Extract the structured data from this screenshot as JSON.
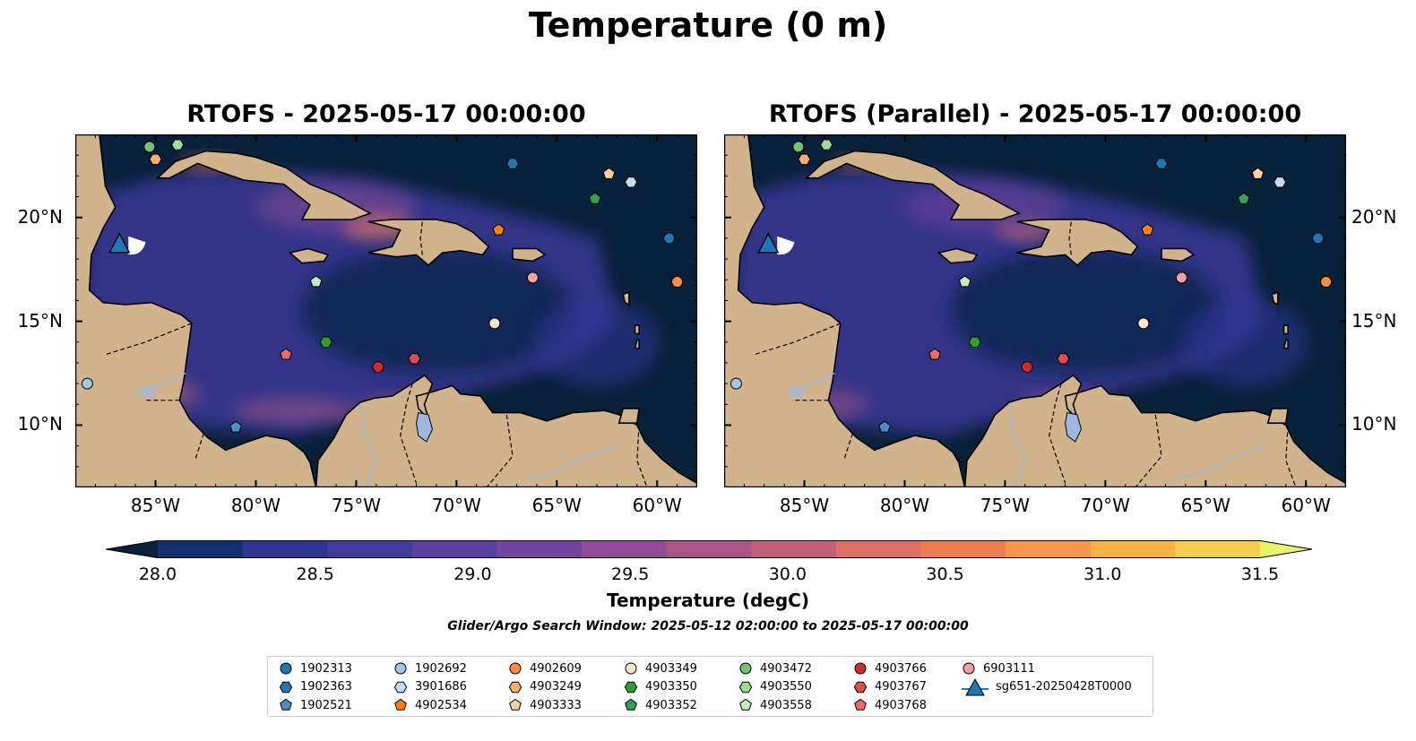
{
  "title": "Temperature (0 m)",
  "panels": [
    {
      "title": "RTOFS - 2025-05-17 00:00:00"
    },
    {
      "title": "RTOFS (Parallel) - 2025-05-17 00:00:00"
    }
  ],
  "axes": {
    "x_ticks": [
      "85°W",
      "80°W",
      "75°W",
      "70°W",
      "65°W",
      "60°W"
    ],
    "y_ticks": [
      "20°N",
      "15°N",
      "10°N"
    ],
    "lon_range": [
      -89,
      -58
    ],
    "lat_range": [
      7,
      24
    ]
  },
  "colorbar": {
    "label": "Temperature (degC)",
    "ticks": [
      "28.0",
      "28.5",
      "29.0",
      "29.5",
      "30.0",
      "30.5",
      "31.0",
      "31.5"
    ],
    "range": [
      28.0,
      31.5
    ],
    "colors": [
      "#0a1f3a",
      "#12306b",
      "#2b3590",
      "#413b9e",
      "#5a40a0",
      "#74459c",
      "#8e4d96",
      "#a85686",
      "#c1607a",
      "#dd6f66",
      "#ee7d52",
      "#f8964a",
      "#fbb143",
      "#f5cf4e",
      "#e8f26a"
    ]
  },
  "search_window": "Glider/Argo Search Window: 2025-05-12 02:00:00 to 2025-05-17 00:00:00",
  "colors": {
    "ocean_dark": "#08213a",
    "land": "#d2b48c",
    "warm": "#e57a45",
    "mid": "#4a3a9a"
  },
  "legend": [
    {
      "label": "1902313",
      "shape": "circle",
      "color": "#1f77b4"
    },
    {
      "label": "1902363",
      "shape": "hexagon",
      "color": "#1f77b4"
    },
    {
      "label": "1902521",
      "shape": "pentagon",
      "color": "#4a90c8"
    },
    {
      "label": "1902692",
      "shape": "circle",
      "color": "#9ecae1"
    },
    {
      "label": "3901686",
      "shape": "hexagon",
      "color": "#c6dbef"
    },
    {
      "label": "4902534",
      "shape": "pentagon",
      "color": "#ff7f0e"
    },
    {
      "label": "4902609",
      "shape": "circle",
      "color": "#fd8d3c"
    },
    {
      "label": "4903249",
      "shape": "hexagon",
      "color": "#fdae6b"
    },
    {
      "label": "4903333",
      "shape": "pentagon",
      "color": "#fdd0a2"
    },
    {
      "label": "4903349",
      "shape": "circle",
      "color": "#fee6ce"
    },
    {
      "label": "4903350",
      "shape": "hexagon",
      "color": "#2ca02c"
    },
    {
      "label": "4903352",
      "shape": "pentagon",
      "color": "#31a354"
    },
    {
      "label": "4903472",
      "shape": "circle",
      "color": "#74c476"
    },
    {
      "label": "4903550",
      "shape": "hexagon",
      "color": "#a1d99b"
    },
    {
      "label": "4903558",
      "shape": "pentagon",
      "color": "#c7e9c0"
    },
    {
      "label": "4903766",
      "shape": "circle",
      "color": "#d62728"
    },
    {
      "label": "4903767",
      "shape": "hexagon",
      "color": "#e34a4a"
    },
    {
      "label": "4903768",
      "shape": "pentagon",
      "color": "#f0696a"
    },
    {
      "label": "6903111",
      "shape": "circle",
      "color": "#f4a09c"
    },
    {
      "label": "sg651-20250428T0000",
      "shape": "triangle",
      "color": "#1f77b4"
    }
  ],
  "floats": [
    {
      "id": "1902313",
      "lon": -59.4,
      "lat": 19.0
    },
    {
      "id": "1902363",
      "lon": -67.2,
      "lat": 22.6
    },
    {
      "id": "1902521",
      "lon": -81.0,
      "lat": 9.9
    },
    {
      "id": "1902692",
      "lon": -88.4,
      "lat": 12.0
    },
    {
      "id": "3901686",
      "lon": -61.3,
      "lat": 21.7
    },
    {
      "id": "4902534",
      "lon": -67.9,
      "lat": 19.4
    },
    {
      "id": "4902609",
      "lon": -59.0,
      "lat": 16.9
    },
    {
      "id": "4903249",
      "lon": -85.0,
      "lat": 22.8
    },
    {
      "id": "4903333",
      "lon": -62.4,
      "lat": 22.1
    },
    {
      "id": "4903349",
      "lon": -68.1,
      "lat": 14.9
    },
    {
      "id": "4903350",
      "lon": -76.5,
      "lat": 14.0
    },
    {
      "id": "4903352",
      "lon": -63.1,
      "lat": 20.9
    },
    {
      "id": "4903472",
      "lon": -85.3,
      "lat": 23.4
    },
    {
      "id": "4903550",
      "lon": -83.9,
      "lat": 23.5
    },
    {
      "id": "4903558",
      "lon": -77.0,
      "lat": 16.9
    },
    {
      "id": "4903766",
      "lon": -73.9,
      "lat": 12.8
    },
    {
      "id": "4903767",
      "lon": -72.1,
      "lat": 13.2
    },
    {
      "id": "4903768",
      "lon": -78.5,
      "lat": 13.4
    },
    {
      "id": "6903111",
      "lon": -66.2,
      "lat": 17.1
    }
  ],
  "glider": {
    "id": "sg651-20250428T0000",
    "lon": -86.8,
    "lat": 18.7
  }
}
